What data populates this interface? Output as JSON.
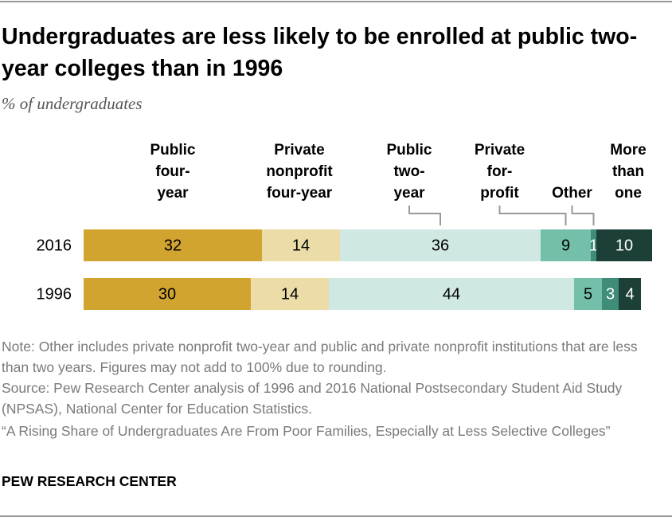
{
  "chart_data": {
    "type": "stacked-bar",
    "title": "Undergraduates are less likely to be enrolled at public two-year colleges than in 1996",
    "subtitle": "% of undergraduates",
    "categories": [
      "2016",
      "1996"
    ],
    "series": [
      {
        "name": "Public four-year",
        "color": "#d1a42f",
        "values": [
          32,
          30
        ]
      },
      {
        "name": "Private nonprofit four-year",
        "color": "#ecdca8",
        "values": [
          14,
          14
        ]
      },
      {
        "name": "Public two-year",
        "color": "#d0e8e3",
        "values": [
          36,
          44
        ]
      },
      {
        "name": "Private for-profit",
        "color": "#74bfa9",
        "values": [
          9,
          5
        ]
      },
      {
        "name": "Other",
        "color": "#3f8d79",
        "values": [
          1,
          3
        ]
      },
      {
        "name": "More than one",
        "color": "#1c4038",
        "values": [
          10,
          4
        ]
      }
    ],
    "note": "Note: Other includes private nonprofit two-year and public and private nonprofit institutions that are less than two years. Figures may not add to 100% due to rounding.",
    "source": "Source: Pew Research Center analysis of 1996 and 2016 National Postsecondary Student Aid Study (NPSAS), National Center for Education Statistics.",
    "citation": "“A Rising Share of Undergraduates Are From Poor Families, Especially at Less Selective Colleges”",
    "footer": "PEW RESEARCH CENTER"
  }
}
